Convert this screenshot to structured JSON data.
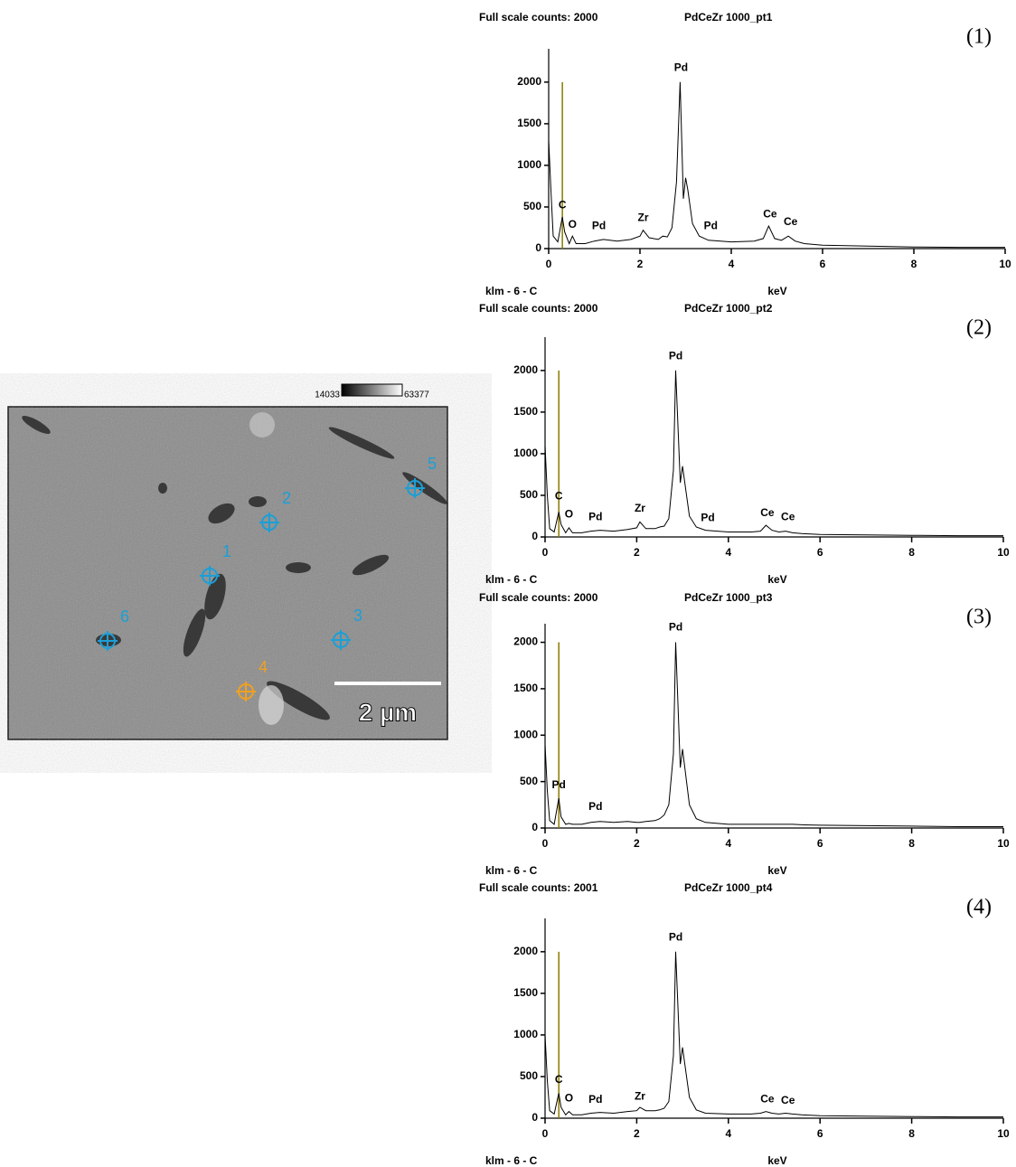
{
  "image": {
    "colorbar": {
      "min": "14033",
      "max": "63377"
    },
    "scale_bar": "2 µm",
    "points": [
      {
        "label": "1",
        "color": "#1b9fd6"
      },
      {
        "label": "2",
        "color": "#1b9fd6"
      },
      {
        "label": "3",
        "color": "#1b9fd6"
      },
      {
        "label": "4",
        "color": "#f0a020"
      },
      {
        "label": "5",
        "color": "#1b9fd6"
      },
      {
        "label": "6",
        "color": "#1b9fd6"
      }
    ]
  },
  "chart_data": [
    {
      "type": "line",
      "subtitle": "Full scale counts: 2000",
      "title": "PdCeZr 1000_pt1",
      "label": "(1)",
      "footer": "klm - 6 - C",
      "xlabel": "keV",
      "x": [
        0,
        0.05,
        0.1,
        0.2,
        0.3,
        0.35,
        0.45,
        0.52,
        0.6,
        0.8,
        1.0,
        1.2,
        1.5,
        1.8,
        2.0,
        2.07,
        2.2,
        2.4,
        2.5,
        2.6,
        2.7,
        2.8,
        2.88,
        2.95,
        3.0,
        3.05,
        3.15,
        3.3,
        3.5,
        4.0,
        4.5,
        4.7,
        4.82,
        4.95,
        5.1,
        5.25,
        5.4,
        5.6,
        6,
        7,
        8,
        9,
        10
      ],
      "values": [
        1300,
        700,
        150,
        80,
        380,
        200,
        60,
        150,
        60,
        60,
        90,
        110,
        90,
        110,
        150,
        220,
        130,
        110,
        150,
        140,
        250,
        800,
        2000,
        600,
        850,
        700,
        300,
        150,
        100,
        80,
        90,
        120,
        270,
        120,
        100,
        150,
        90,
        60,
        40,
        30,
        20,
        15,
        15
      ],
      "color": "#000000",
      "marker": {
        "x": 0.3,
        "y": 2000,
        "color": "#8a7a00"
      },
      "annotations": [
        {
          "text": "C",
          "x": 0.3,
          "y": 430
        },
        {
          "text": "O",
          "x": 0.52,
          "y": 200
        },
        {
          "text": "Pd",
          "x": 1.1,
          "y": 180
        },
        {
          "text": "Zr",
          "x": 2.07,
          "y": 280
        },
        {
          "text": "Pd",
          "x": 2.9,
          "y": 2080
        },
        {
          "text": "Pd",
          "x": 3.55,
          "y": 180
        },
        {
          "text": "Ce",
          "x": 4.85,
          "y": 320
        },
        {
          "text": "Ce",
          "x": 5.3,
          "y": 230
        }
      ],
      "xlim": [
        0,
        10
      ],
      "ylim": [
        0,
        2400
      ],
      "xticks": [
        0,
        2,
        4,
        6,
        8,
        10
      ],
      "yticks": [
        0,
        500,
        1000,
        1500,
        2000
      ]
    },
    {
      "type": "line",
      "subtitle": "Full scale counts: 2000",
      "title": "PdCeZr 1000_pt2",
      "label": "(2)",
      "footer": "klm - 6 - C",
      "xlabel": "keV",
      "x": [
        0,
        0.05,
        0.1,
        0.2,
        0.3,
        0.35,
        0.45,
        0.52,
        0.6,
        0.8,
        1.0,
        1.2,
        1.5,
        1.8,
        2.0,
        2.07,
        2.2,
        2.4,
        2.5,
        2.6,
        2.7,
        2.8,
        2.85,
        2.95,
        3.0,
        3.05,
        3.15,
        3.3,
        3.5,
        4.0,
        4.5,
        4.7,
        4.82,
        4.95,
        5.1,
        5.25,
        5.4,
        5.6,
        6,
        7,
        8,
        9,
        10
      ],
      "values": [
        1100,
        500,
        100,
        60,
        300,
        150,
        50,
        110,
        50,
        50,
        70,
        80,
        70,
        90,
        110,
        180,
        100,
        100,
        120,
        130,
        220,
        800,
        2000,
        650,
        850,
        650,
        250,
        120,
        80,
        60,
        60,
        70,
        140,
        80,
        60,
        70,
        50,
        40,
        30,
        25,
        20,
        15,
        15
      ],
      "color": "#000000",
      "marker": {
        "x": 0.3,
        "y": 2000,
        "color": "#8a7a00"
      },
      "annotations": [
        {
          "text": "C",
          "x": 0.3,
          "y": 400
        },
        {
          "text": "O",
          "x": 0.52,
          "y": 180
        },
        {
          "text": "Pd",
          "x": 1.1,
          "y": 150
        },
        {
          "text": "Zr",
          "x": 2.07,
          "y": 250
        },
        {
          "text": "Pd",
          "x": 2.85,
          "y": 2080
        },
        {
          "text": "Pd",
          "x": 3.55,
          "y": 140
        },
        {
          "text": "Ce",
          "x": 4.85,
          "y": 200
        },
        {
          "text": "Ce",
          "x": 5.3,
          "y": 150
        }
      ],
      "xlim": [
        0,
        10
      ],
      "ylim": [
        0,
        2400
      ],
      "xticks": [
        0,
        2,
        4,
        6,
        8,
        10
      ],
      "yticks": [
        0,
        500,
        1000,
        1500,
        2000
      ]
    },
    {
      "type": "line",
      "subtitle": "Full scale counts: 2000",
      "title": "PdCeZr 1000_pt3",
      "label": "(3)",
      "footer": "klm - 6 - C",
      "xlabel": "keV",
      "x": [
        0,
        0.05,
        0.1,
        0.2,
        0.3,
        0.35,
        0.45,
        0.52,
        0.6,
        0.8,
        1.0,
        1.2,
        1.5,
        1.8,
        2.0,
        2.07,
        2.2,
        2.4,
        2.5,
        2.6,
        2.7,
        2.8,
        2.85,
        2.95,
        3.0,
        3.05,
        3.15,
        3.3,
        3.5,
        4.0,
        4.5,
        4.7,
        4.82,
        4.95,
        5.1,
        5.25,
        5.4,
        5.6,
        6,
        7,
        8,
        9,
        10
      ],
      "values": [
        900,
        400,
        80,
        40,
        320,
        120,
        40,
        50,
        40,
        40,
        60,
        70,
        60,
        70,
        60,
        60,
        70,
        80,
        100,
        140,
        250,
        800,
        2000,
        650,
        850,
        650,
        250,
        100,
        60,
        40,
        40,
        40,
        40,
        40,
        40,
        40,
        40,
        35,
        30,
        25,
        20,
        15,
        15
      ],
      "color": "#000000",
      "marker": {
        "x": 0.3,
        "y": 2000,
        "color": "#8a7a00"
      },
      "annotations": [
        {
          "text": "Pd",
          "x": 0.3,
          "y": 380
        },
        {
          "text": "Pd",
          "x": 1.1,
          "y": 150
        },
        {
          "text": "Pd",
          "x": 2.85,
          "y": 2080
        }
      ],
      "xlim": [
        0,
        10
      ],
      "ylim": [
        0,
        2200
      ],
      "xticks": [
        0,
        2,
        4,
        6,
        8,
        10
      ],
      "yticks": [
        0,
        500,
        1000,
        1500,
        2000
      ]
    },
    {
      "type": "line",
      "subtitle": "Full scale counts: 2001",
      "title": "PdCeZr 1000_pt4",
      "label": "(4)",
      "footer": "klm - 6 - C",
      "xlabel": "keV",
      "x": [
        0,
        0.05,
        0.1,
        0.2,
        0.3,
        0.35,
        0.45,
        0.52,
        0.6,
        0.8,
        1.0,
        1.2,
        1.5,
        1.8,
        2.0,
        2.07,
        2.2,
        2.4,
        2.5,
        2.6,
        2.7,
        2.8,
        2.85,
        2.95,
        3.0,
        3.05,
        3.15,
        3.3,
        3.5,
        4.0,
        4.5,
        4.7,
        4.82,
        4.95,
        5.1,
        5.25,
        5.4,
        5.6,
        6,
        7,
        8,
        9,
        10
      ],
      "values": [
        1000,
        450,
        90,
        50,
        300,
        130,
        40,
        80,
        40,
        40,
        60,
        70,
        60,
        80,
        90,
        130,
        90,
        90,
        100,
        120,
        200,
        750,
        2000,
        650,
        850,
        650,
        250,
        100,
        60,
        50,
        50,
        60,
        80,
        60,
        50,
        60,
        50,
        40,
        30,
        25,
        20,
        15,
        15
      ],
      "color": "#000000",
      "marker": {
        "x": 0.3,
        "y": 2000,
        "color": "#8a7a00"
      },
      "annotations": [
        {
          "text": "C",
          "x": 0.3,
          "y": 370
        },
        {
          "text": "O",
          "x": 0.52,
          "y": 150
        },
        {
          "text": "Pd",
          "x": 1.1,
          "y": 130
        },
        {
          "text": "Zr",
          "x": 2.07,
          "y": 170
        },
        {
          "text": "Pd",
          "x": 2.85,
          "y": 2080
        },
        {
          "text": "Ce",
          "x": 4.85,
          "y": 140
        },
        {
          "text": "Ce",
          "x": 5.3,
          "y": 120
        }
      ],
      "xlim": [
        0,
        10
      ],
      "ylim": [
        0,
        2400
      ],
      "xticks": [
        0,
        2,
        4,
        6,
        8,
        10
      ],
      "yticks": [
        0,
        500,
        1000,
        1500,
        2000
      ]
    }
  ]
}
